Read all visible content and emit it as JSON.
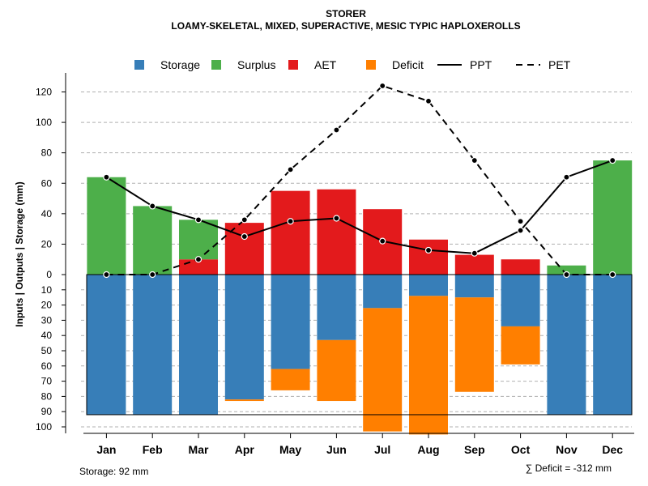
{
  "chart_data": {
    "type": "bar",
    "title": "STORER",
    "subtitle": "LOAMY-SKELETAL, MIXED, SUPERACTIVE, MESIC TYPIC HAPLOXEROLLS",
    "ylabel": "Inputs | Outputs | Storage     (mm)",
    "categories": [
      "Jan",
      "Feb",
      "Mar",
      "Apr",
      "May",
      "Jun",
      "Jul",
      "Aug",
      "Sep",
      "Oct",
      "Nov",
      "Dec"
    ],
    "upper_ylim": [
      0,
      130
    ],
    "upper_ticks": [
      "0",
      "20",
      "40",
      "60",
      "80",
      "100",
      "120"
    ],
    "lower_ylim": [
      0,
      100
    ],
    "lower_ticks": [
      "0",
      "10",
      "20",
      "30",
      "40",
      "50",
      "60",
      "70",
      "80",
      "90",
      "100"
    ],
    "series": [
      {
        "name": "AET",
        "kind": "bar-up",
        "color": "#E31A1C",
        "values": [
          0,
          0,
          10,
          34,
          55,
          56,
          43,
          23,
          13,
          10,
          0,
          0
        ]
      },
      {
        "name": "Surplus",
        "kind": "bar-up",
        "color": "#4DAF4A",
        "values": [
          64,
          45,
          26,
          0,
          0,
          0,
          0,
          0,
          0,
          0,
          6,
          75
        ]
      },
      {
        "name": "Storage",
        "kind": "bar-down",
        "color": "#377EB8",
        "values": [
          92,
          92,
          92,
          82,
          62,
          43,
          22,
          14,
          15,
          34,
          92,
          92
        ]
      },
      {
        "name": "Deficit",
        "kind": "bar-down",
        "color": "#FF7F00",
        "values": [
          0,
          0,
          0,
          1,
          14,
          40,
          81,
          91,
          62,
          25,
          0,
          0
        ]
      },
      {
        "name": "PPT",
        "kind": "line",
        "dash": "solid",
        "values": [
          64,
          45,
          36,
          25,
          35,
          37,
          22,
          16,
          14,
          29,
          64,
          75
        ]
      },
      {
        "name": "PET",
        "kind": "line",
        "dash": "dashed",
        "values": [
          0,
          0,
          10,
          36,
          69,
          95,
          124,
          114,
          75,
          35,
          0,
          0
        ]
      }
    ],
    "legend": [
      "Storage",
      "Surplus",
      "AET",
      "Deficit",
      "PPT",
      "PET"
    ],
    "legend_position": "top",
    "storage_capacity": 92,
    "grid": true
  },
  "notes": {
    "storage": "Storage: 92 mm",
    "deficit": "∑ Deficit = -312 mm"
  }
}
